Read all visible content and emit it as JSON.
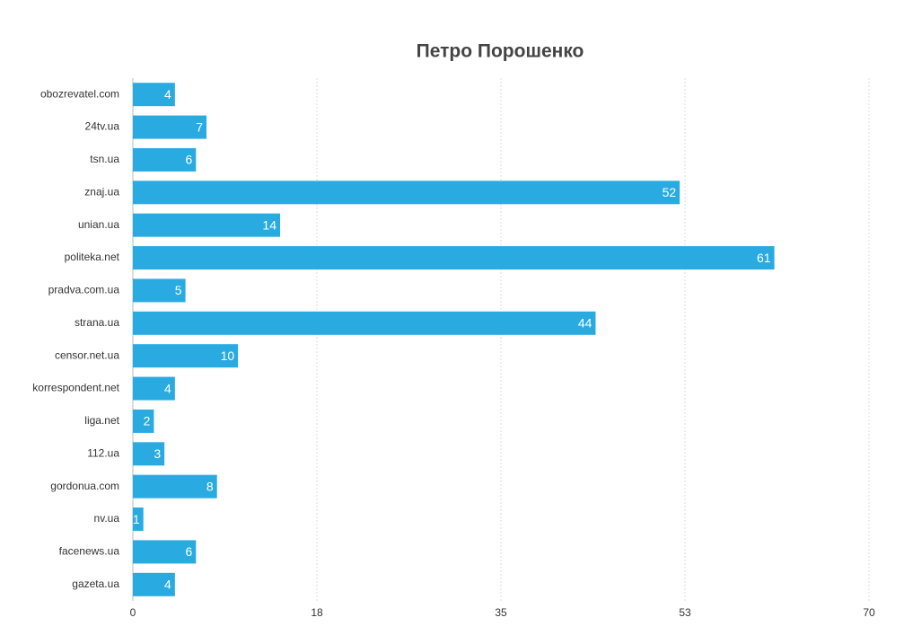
{
  "chart_data": {
    "type": "bar",
    "orientation": "horizontal",
    "title": "Петро Порошенко",
    "categories": [
      "obozrevatel.com",
      "24tv.ua",
      "tsn.ua",
      "znaj.ua",
      "unian.ua",
      "politeka.net",
      "pradva.com.ua",
      "strana.ua",
      "censor.net.ua",
      "korrespondent.net",
      "liga.net",
      "112.ua",
      "gordonua.com",
      "nv.ua",
      "facenews.ua",
      "gazeta.ua"
    ],
    "values": [
      4,
      7,
      6,
      52,
      14,
      61,
      5,
      44,
      10,
      4,
      2,
      3,
      8,
      1,
      6,
      4
    ],
    "color": "#29abe2",
    "xlim": [
      0,
      70
    ],
    "xticks": [
      0,
      {
        "value": 17.5,
        "label": "18"
      },
      35,
      {
        "value": 52.5,
        "label": "53"
      },
      70
    ],
    "grid": true
  }
}
